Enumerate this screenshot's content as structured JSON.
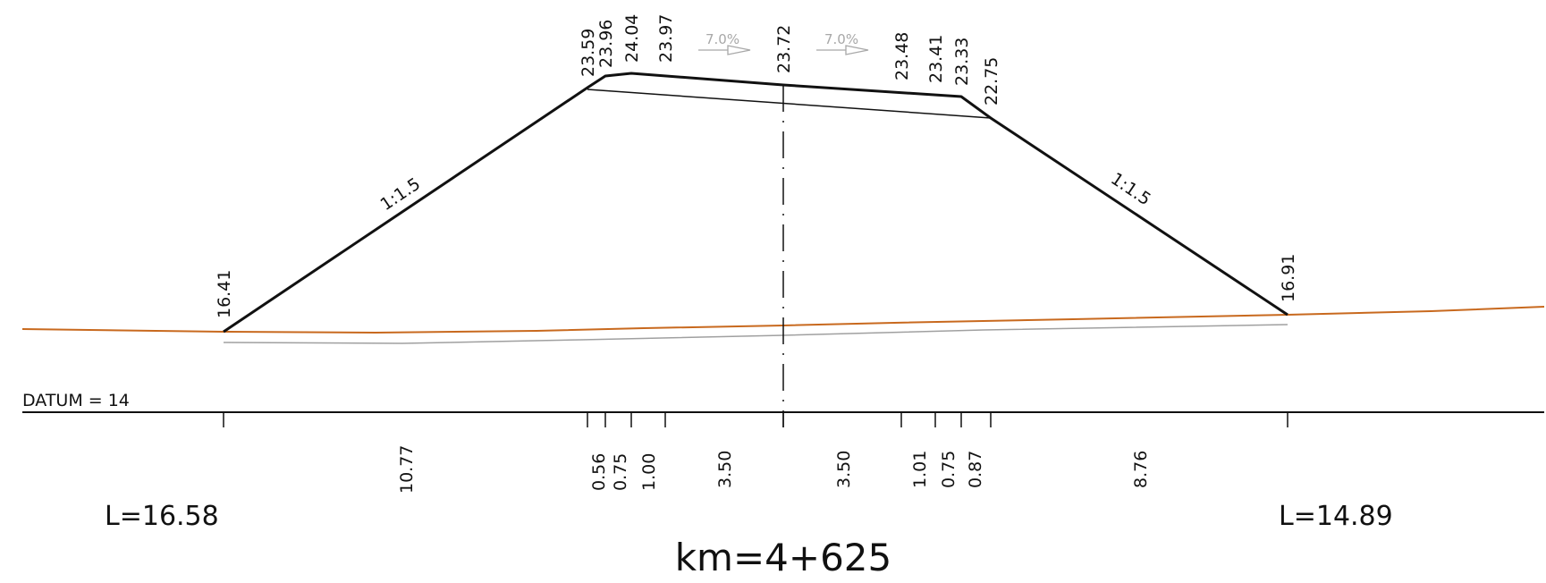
{
  "drawing": {
    "datum_label": "DATUM  =  14",
    "station_label": "km=4+625",
    "left_length_label": "L=16.58",
    "right_length_label": "L=14.89",
    "colors": {
      "outline": "#111111",
      "ground": "#c8691e",
      "subgrade": "#a0a0a0",
      "grade_arrow": "#a8a8a8"
    },
    "elevations": {
      "left_toe": "16.41",
      "e1": "23.59",
      "e2": "23.96",
      "e3": "24.04",
      "e4": "23.97",
      "axis": "23.72",
      "e5": "23.48",
      "e6": "23.41",
      "e7": "23.33",
      "e8": "22.75",
      "right_toe": "16.91"
    },
    "slopes": {
      "left": "1:1.5",
      "right": "1:1.5"
    },
    "grades": {
      "left": "7.0%",
      "right": "7.0%"
    },
    "distances": {
      "d1": "10.77",
      "d2": "0.56",
      "d3": "0.75",
      "d4": "1.00",
      "d5": "3.50",
      "d6": "3.50",
      "d7": "1.01",
      "d8": "0.75",
      "d9": "0.87",
      "d10": "8.76"
    }
  }
}
